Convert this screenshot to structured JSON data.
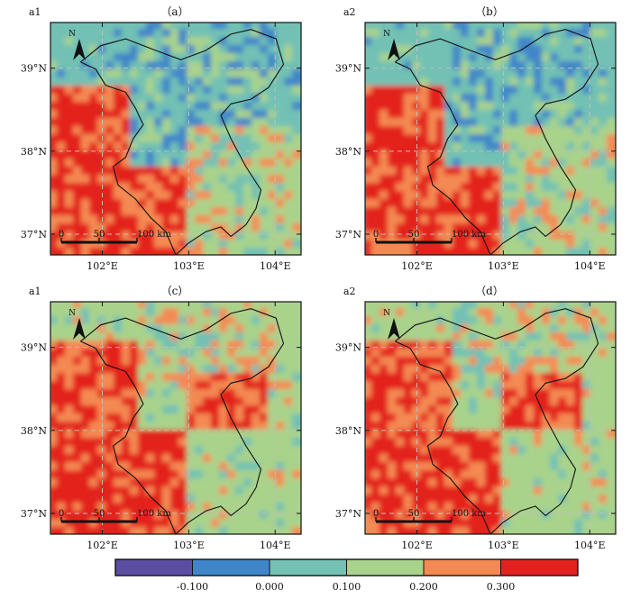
{
  "panels": [
    {
      "corner_label": "a1",
      "title": "（a）"
    },
    {
      "corner_label": "a2",
      "title": "（b）"
    },
    {
      "corner_label": "a1",
      "title": "（c）"
    },
    {
      "corner_label": "a2",
      "title": "（d）"
    }
  ],
  "axes": {
    "lat_ticks": [
      "39°N",
      "38°N",
      "37°N"
    ],
    "lon_ticks": [
      "102°E",
      "103°E",
      "104°E"
    ],
    "lon_range": [
      101.4,
      104.3
    ],
    "lat_range": [
      36.75,
      39.55
    ]
  },
  "scale_bar": {
    "labels": [
      "0",
      "50",
      "100 km"
    ]
  },
  "north_arrow": {
    "label": "N"
  },
  "legend": {
    "ticks": [
      "-0.100",
      "0.000",
      "0.100",
      "0.200",
      "0.300"
    ],
    "colors": [
      "#5b4ea2",
      "#3f86c9",
      "#72c1b4",
      "#a9d38b",
      "#f48a52",
      "#e3221f"
    ],
    "grid_color": "#bfbfbf"
  },
  "chart_data": {
    "type": "heatmap",
    "description_source": "four raster map panels sharing one discrete colorbar",
    "class_breaks": [
      -0.1,
      0.0,
      0.1,
      0.2,
      0.3
    ],
    "panels": [
      "（a）",
      "（b）",
      "（c）",
      "（d）"
    ]
  }
}
